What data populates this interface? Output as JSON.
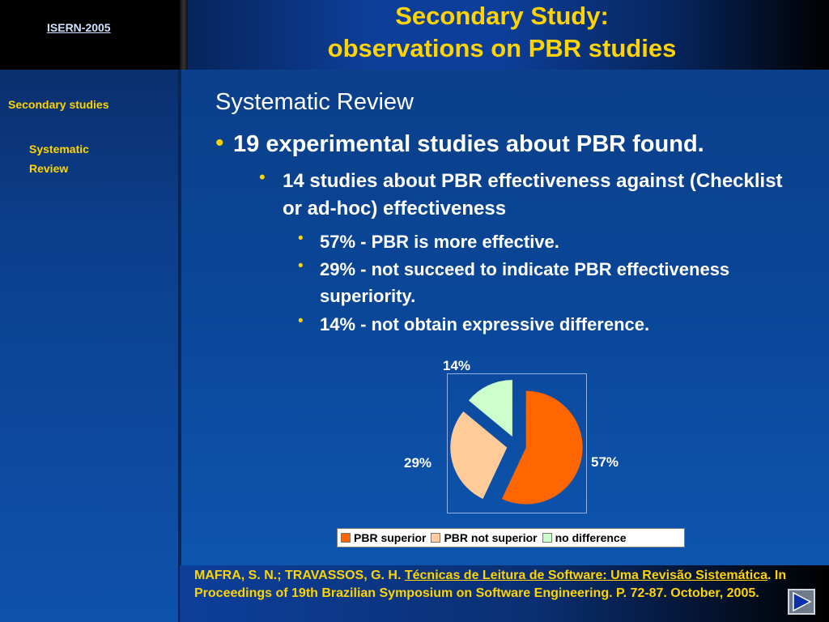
{
  "header": {
    "brand": "ISERN-2005",
    "title_line1": "Secondary Study:",
    "title_line2": "observations on PBR studies"
  },
  "sidebar": {
    "items": [
      {
        "label": "Secondary studies"
      },
      {
        "label": "Systematic Review"
      }
    ]
  },
  "content": {
    "heading": "Systematic Review",
    "bullet1": "19 experimental studies about PBR found.",
    "bullet2": "14 studies about PBR effectiveness against (Checklist or ad-hoc) effectiveness",
    "sub_bullets": [
      "57% - PBR is more effective.",
      "29% - not succeed to indicate PBR effectiveness superiority.",
      "14% - not obtain expressive difference."
    ],
    "bullet_glyph": "•"
  },
  "chart_data": {
    "type": "pie",
    "categories": [
      "PBR superior",
      "PBR not superior",
      "no difference"
    ],
    "values": [
      57,
      29,
      14
    ],
    "labels": [
      "57%",
      "29%",
      "14%"
    ],
    "colors": [
      "#ff6600",
      "#ffcc99",
      "#ccffcc"
    ],
    "legend": "bottom",
    "exploded": true
  },
  "footer": {
    "citation_prefix": "MAFRA, S. N.; TRAVASSOS, G. H. ",
    "citation_link": "Técnicas de Leitura de Software: Uma Revisão Sistemática",
    "citation_suffix": ". In Proceedings of 19th Brazilian Symposium on Software Engineering. P. 72-87. October, 2005."
  },
  "nav": {
    "next_icon": "play-arrow-icon"
  }
}
